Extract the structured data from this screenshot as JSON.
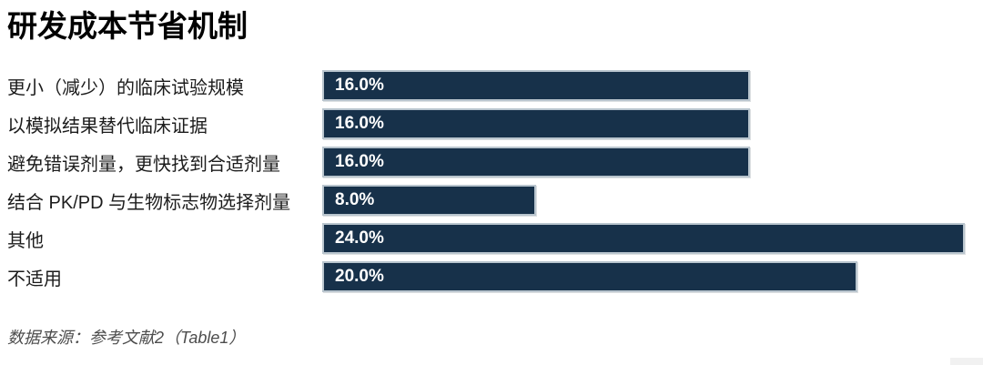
{
  "title": "研发成本节省机制",
  "chart_data": {
    "type": "bar",
    "orientation": "horizontal",
    "title": "研发成本节省机制",
    "categories": [
      "更小（减少）的临床试验规模",
      "以模拟结果替代临床证据",
      "避免错误剂量，更快找到合适剂量",
      "结合 PK/PD 与生物标志物选择剂量",
      "其他",
      "不适用"
    ],
    "values": [
      16.0,
      16.0,
      16.0,
      8.0,
      24.0,
      20.0
    ],
    "value_labels": [
      "16.0%",
      "16.0%",
      "16.0%",
      "8.0%",
      "24.0%",
      "20.0%"
    ],
    "unit": "%",
    "xlim": [
      0,
      24.6
    ],
    "grid": false,
    "data_labels_inside": true,
    "bar_color": "#17314a",
    "bar_border_color": "#b9c5ce",
    "value_label_color": "#ffffff",
    "category_label_color": "#1c1c1c"
  },
  "footer": {
    "source_text": "数据来源：参考文献2（Table1）"
  },
  "colors": {
    "background": "#ffffff",
    "title_color": "#000000",
    "footer_color": "#4d4d4d",
    "scrollbar_fragment": "#f1f1f1"
  }
}
